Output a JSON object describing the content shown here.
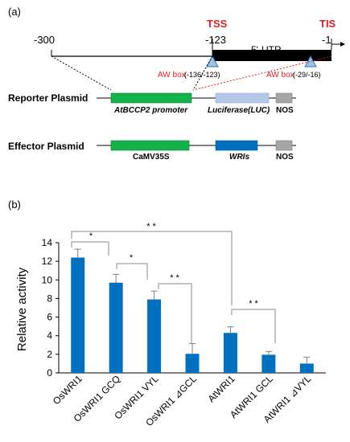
{
  "panel_a": {
    "label": "(a)",
    "tick_m300": "-300",
    "tss_label": "TSS",
    "tss_pos": "-123",
    "utr_label": "5'-UTR",
    "tis_label": "TIS",
    "tis_pos": "-1",
    "aw_box_1": "AW box",
    "aw_box_1_pos": "(-136/-123)",
    "aw_box_2": "AW box",
    "aw_box_2_pos": "(-29/-16)",
    "reporter": {
      "title": "Reporter Plasmid",
      "promoter": "AtBCCP2 promoter",
      "luc": "Luciferase(LUC)",
      "nos": "NOS"
    },
    "effector": {
      "title": "Effector Plasmid",
      "promoter": "CaMV35S",
      "gene": "WRIs",
      "nos": "NOS"
    },
    "colors": {
      "promoter_green": "#13b24a",
      "luc_blue": "#b4c7e7",
      "wri_blue": "#0070c0",
      "nos_gray": "#a6a6a6",
      "triangle_blue": "#9dc3e6",
      "label_red": "#e31e24"
    }
  },
  "panel_b": {
    "label": "(b)",
    "significance_marks": [
      "*",
      "*",
      "* *",
      "* *",
      "* *"
    ]
  },
  "chart_data": {
    "type": "bar",
    "ylabel": "Relative activity",
    "ylim": [
      0,
      14
    ],
    "yticks": [
      "0",
      "2",
      "4",
      "6",
      "8",
      "10",
      "12",
      "14"
    ],
    "categories": [
      "OsWRI1",
      "OsWRI1 GCQ",
      "OsWRI1 VYL",
      "OsWRI1 ⊿GCL",
      "AtWRI1",
      "AtWRI1 GCL",
      "AtWRI1 ⊿VYL"
    ],
    "values": [
      12.4,
      9.7,
      7.9,
      2.05,
      4.3,
      1.95,
      1.0
    ],
    "errors": [
      0.9,
      0.9,
      0.9,
      1.1,
      0.65,
      0.35,
      0.7
    ],
    "bar_color": "#0070c0",
    "grid": false
  }
}
